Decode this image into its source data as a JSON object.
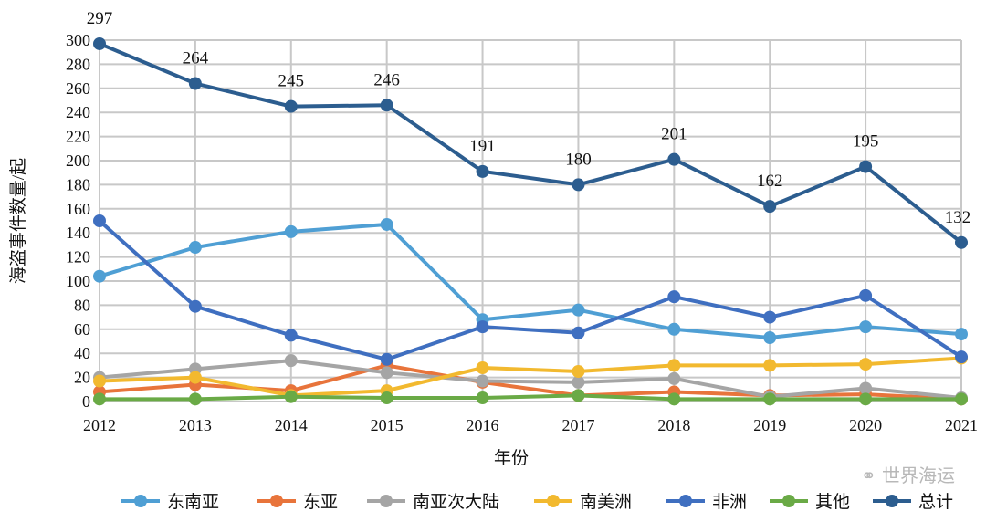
{
  "chart_data": {
    "type": "line",
    "title": "",
    "xlabel": "年份",
    "ylabel": "海盗事件数量/起",
    "x": [
      "2012",
      "2013",
      "2014",
      "2015",
      "2016",
      "2017",
      "2018",
      "2019",
      "2020",
      "2021"
    ],
    "ylim": [
      0,
      300
    ],
    "yticks": [
      "0",
      "20",
      "40",
      "60",
      "80",
      "100",
      "120",
      "140",
      "160",
      "180",
      "200",
      "220",
      "240",
      "260",
      "280",
      "300"
    ],
    "grid": true,
    "legend_position": "bottom",
    "series": [
      {
        "name": "东南亚",
        "color": "#4f9fd4",
        "values": [
          104,
          128,
          141,
          147,
          68,
          76,
          60,
          53,
          62,
          56
        ]
      },
      {
        "name": "东亚",
        "color": "#e8743b",
        "values": [
          8,
          14,
          9,
          30,
          16,
          5,
          8,
          5,
          6,
          2
        ]
      },
      {
        "name": "南亚次大陆",
        "color": "#a5a5a5",
        "values": [
          20,
          27,
          34,
          24,
          17,
          16,
          19,
          4,
          11,
          3
        ]
      },
      {
        "name": "南美洲",
        "color": "#f2b92f",
        "values": [
          17,
          20,
          5,
          9,
          28,
          25,
          30,
          30,
          31,
          36
        ]
      },
      {
        "name": "非洲",
        "color": "#3f6fc0",
        "values": [
          150,
          79,
          55,
          35,
          62,
          57,
          87,
          70,
          88,
          37
        ]
      },
      {
        "name": "其他",
        "color": "#6aaa46",
        "values": [
          2,
          2,
          4,
          3,
          3,
          5,
          2,
          2,
          2,
          2
        ]
      },
      {
        "name": "总计",
        "color": "#2c5d8f",
        "values": [
          297,
          264,
          245,
          246,
          191,
          180,
          201,
          162,
          195,
          132
        ],
        "data_labels": [
          "297",
          "264",
          "245",
          "246",
          "191",
          "180",
          "201",
          "162",
          "195",
          "132"
        ]
      }
    ]
  },
  "watermark": "世界海运"
}
